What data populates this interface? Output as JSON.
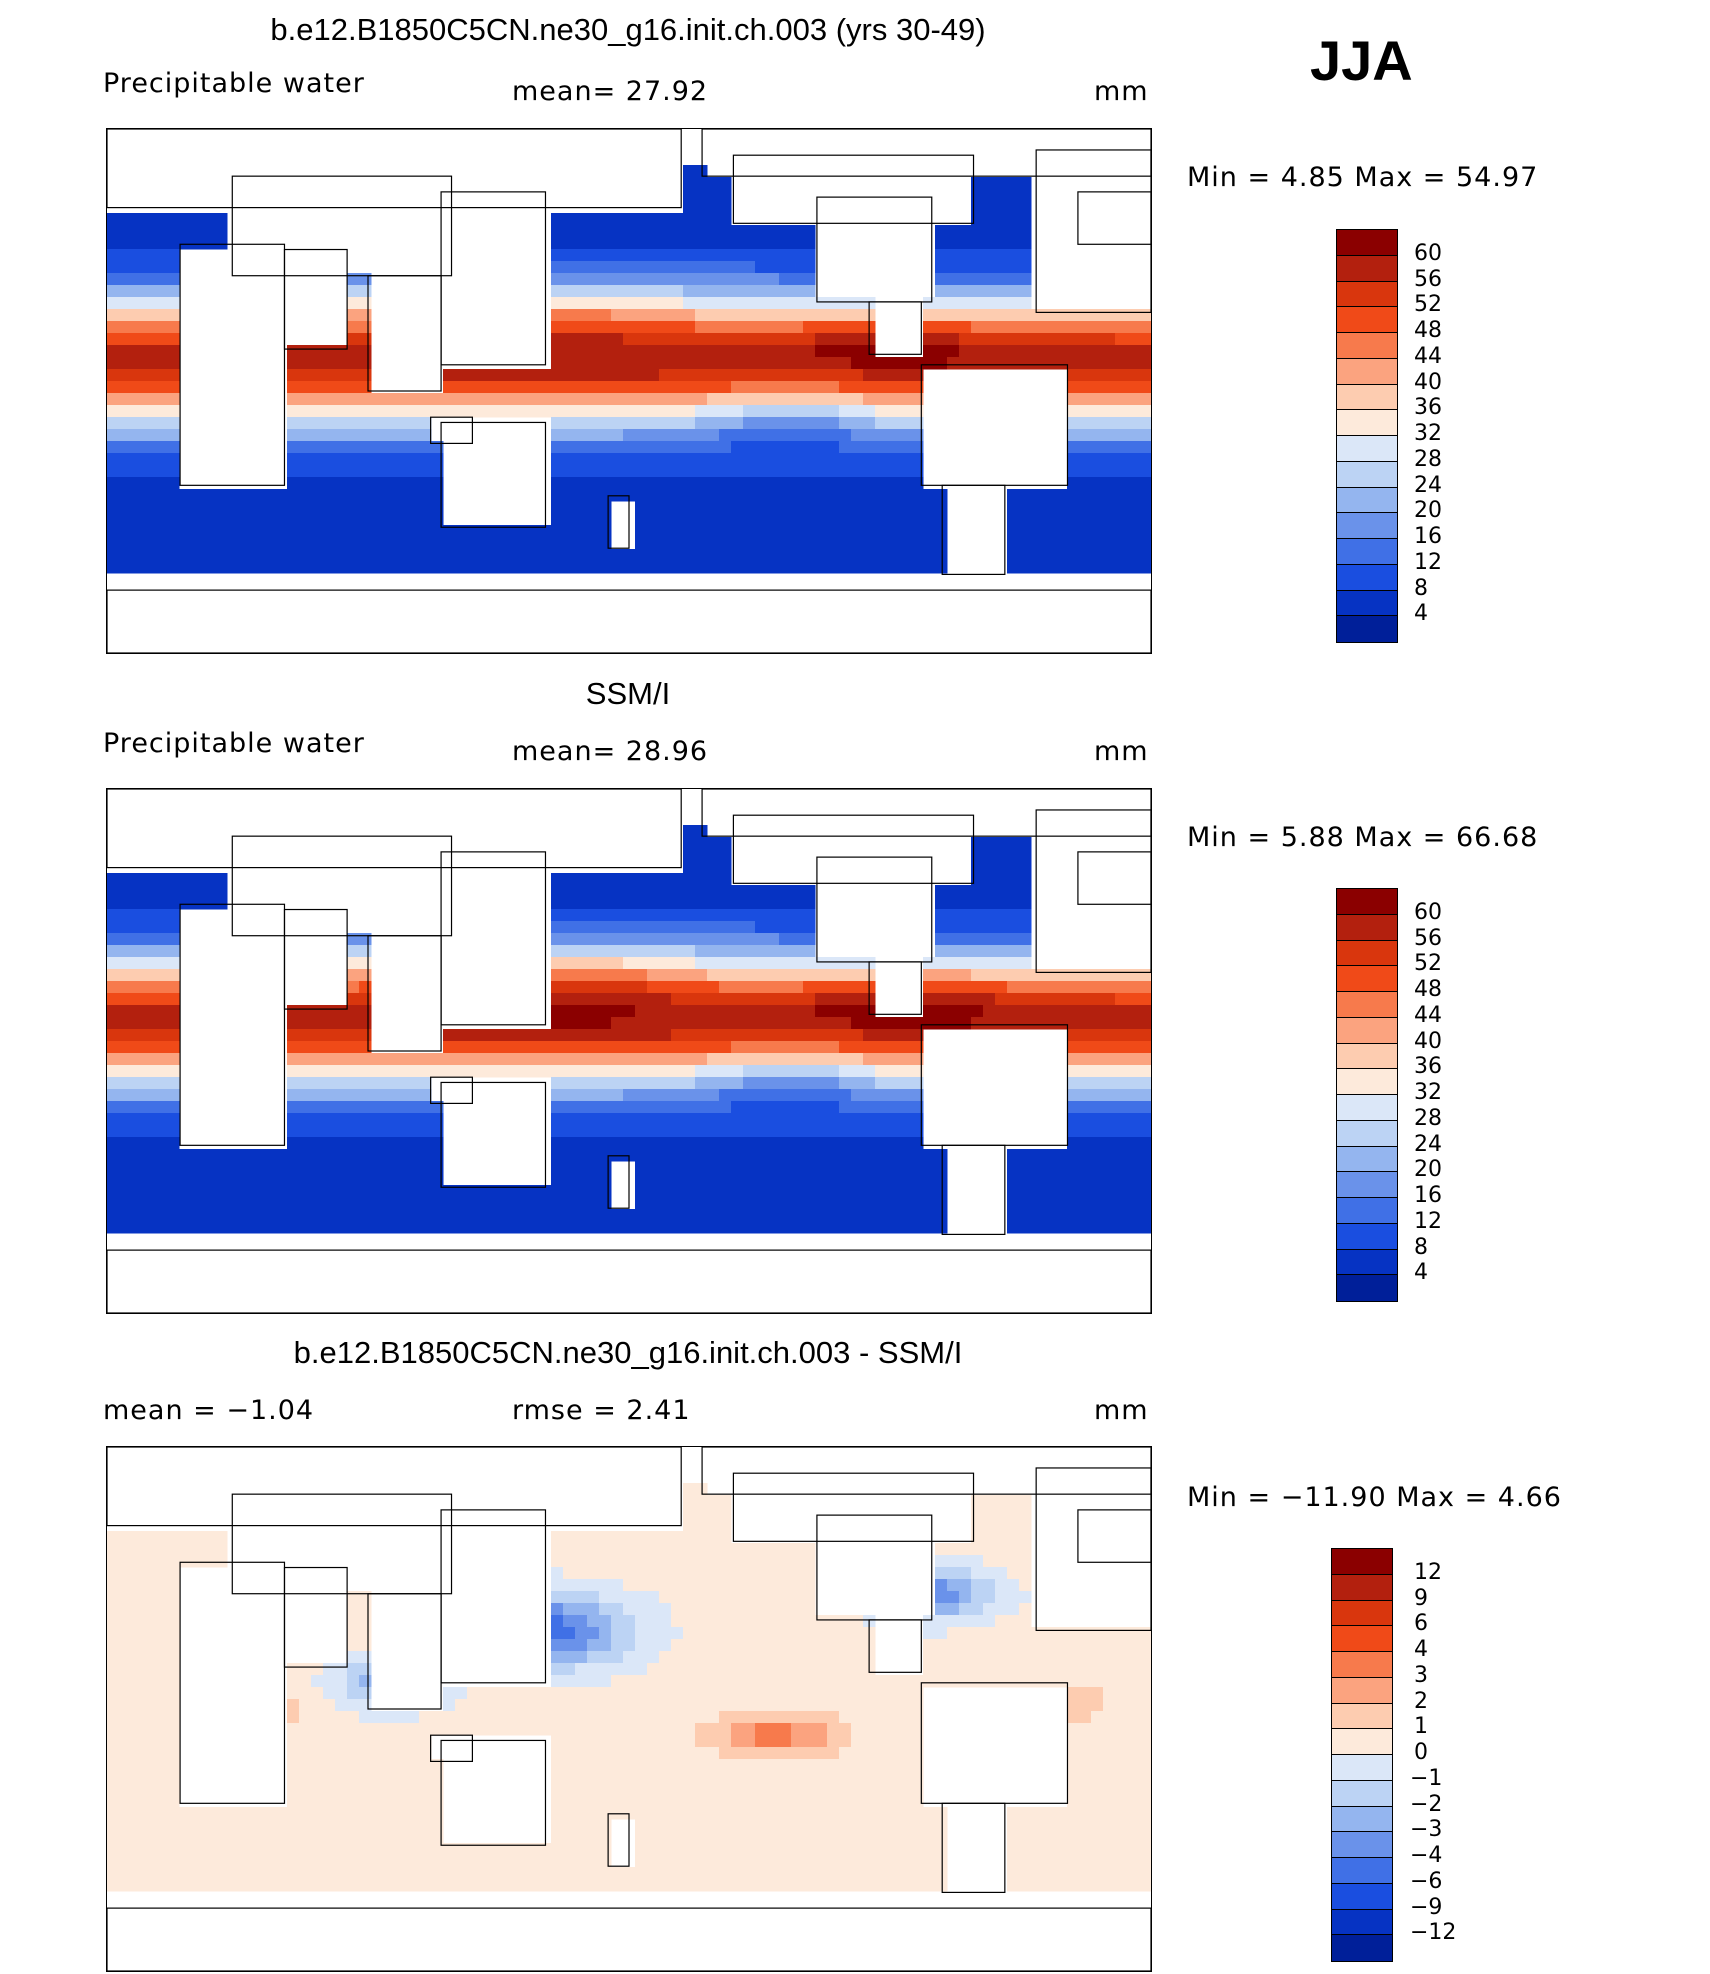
{
  "season": "JJA",
  "panels": [
    {
      "title": "b.e12.B1850C5CN.ne30_g16.init.ch.003 (yrs 30-49)",
      "left_label": "Precipitable water",
      "center_label": "mean=   27.92",
      "units": "mm",
      "minmax": "Min  =     4.85  Max  =     54.97",
      "map_kind": "model"
    },
    {
      "title": "SSM/I",
      "left_label": "Precipitable water",
      "center_label": "mean=   28.96",
      "units": "mm",
      "minmax": "Min  =     5.88  Max  =     66.68",
      "map_kind": "obs"
    },
    {
      "title": "b.e12.B1850C5CN.ne30_g16.init.ch.003 - SSM/I",
      "left_label": "mean  =    −1.04",
      "center_label": "rmse  =     2.41",
      "units": "mm",
      "minmax": "Min  = −11.90  Max  =     4.66",
      "map_kind": "diff"
    }
  ],
  "colorbars": {
    "abs": {
      "colors": [
        "#8b0000",
        "#b3200e",
        "#d9360d",
        "#f04a18",
        "#f77a4c",
        "#fba37f",
        "#fdccb0",
        "#fdeadb",
        "#dbe7f8",
        "#bcd3f4",
        "#94b5ef",
        "#6a92ea",
        "#4070e6",
        "#1a4ee0",
        "#0633c3",
        "#001f99"
      ],
      "labels": [
        "60",
        "56",
        "52",
        "48",
        "44",
        "40",
        "36",
        "32",
        "28",
        "24",
        "20",
        "16",
        "12",
        "8",
        "4"
      ]
    },
    "diff": {
      "colors": [
        "#8b0000",
        "#b3200e",
        "#d9360d",
        "#f04a18",
        "#f77a4c",
        "#fba37f",
        "#fdccb0",
        "#fdeadb",
        "#dbe7f8",
        "#bcd3f4",
        "#94b5ef",
        "#6a92ea",
        "#4070e6",
        "#1a4ee0",
        "#0633c3",
        "#001f99"
      ],
      "labels": [
        "12",
        "9",
        "6",
        "4",
        "3",
        "2",
        "1",
        "0",
        "−1",
        "−2",
        "−3",
        "−4",
        "−6",
        "−9",
        "−12"
      ]
    }
  },
  "chart_data": [
    {
      "type": "heatmap",
      "title": "b.e12.B1850C5CN.ne30_g16.init.ch.003 (yrs 30-49)",
      "variable": "Precipitable water",
      "units": "mm",
      "season": "JJA",
      "mean": 27.92,
      "min": 4.85,
      "max": 54.97,
      "levels": [
        4,
        8,
        12,
        16,
        20,
        24,
        28,
        32,
        36,
        40,
        44,
        48,
        52,
        56,
        60
      ]
    },
    {
      "type": "heatmap",
      "title": "SSM/I",
      "variable": "Precipitable water",
      "units": "mm",
      "mean": 28.96,
      "min": 5.88,
      "max": 66.68,
      "levels": [
        4,
        8,
        12,
        16,
        20,
        24,
        28,
        32,
        36,
        40,
        44,
        48,
        52,
        56,
        60
      ]
    },
    {
      "type": "heatmap",
      "title": "b.e12.B1850C5CN.ne30_g16.init.ch.003 - SSM/I",
      "units": "mm",
      "mean": -1.04,
      "rmse": 2.41,
      "min": -11.9,
      "max": 4.66,
      "levels": [
        -12,
        -9,
        -6,
        -4,
        -3,
        -2,
        -1,
        0,
        1,
        2,
        3,
        4,
        6,
        9,
        12
      ]
    }
  ]
}
